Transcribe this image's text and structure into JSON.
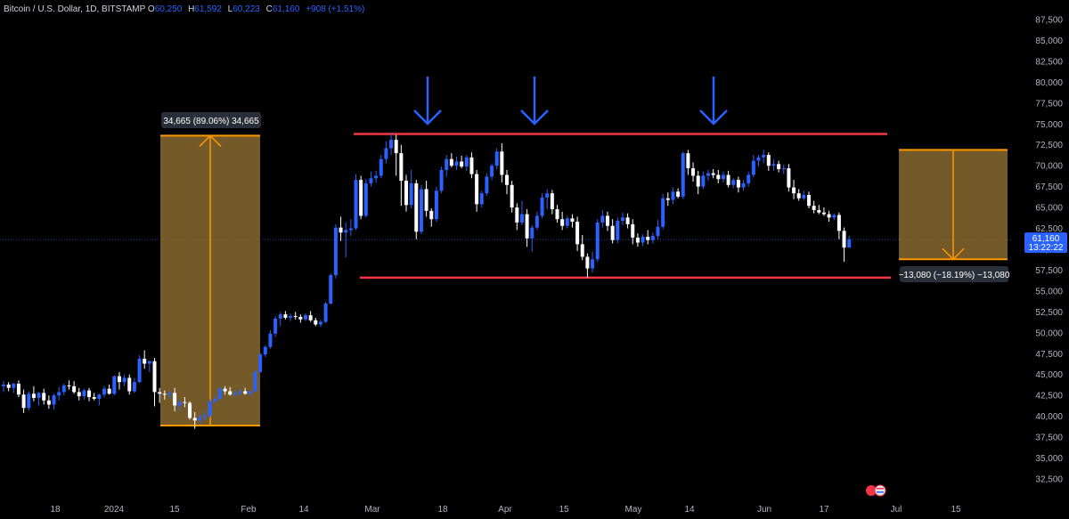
{
  "header": {
    "symbol": "Bitcoin / U.S. Dollar, 1D, BITSTAMP",
    "o_label": "O",
    "o_value": "60,250",
    "h_label": "H",
    "h_value": "61,592",
    "l_label": "L",
    "l_value": "60,223",
    "c_label": "C",
    "c_value": "61,160",
    "change": "+908 (+1.51%)"
  },
  "chart_data": {
    "type": "candlestick",
    "y_ticks": [
      "87,500",
      "85,000",
      "82,500",
      "80,000",
      "77,500",
      "75,000",
      "72,500",
      "70,000",
      "67,500",
      "65,000",
      "62,500",
      "60,000",
      "57,500",
      "55,000",
      "52,500",
      "50,000",
      "47,500",
      "45,000",
      "42,500",
      "40,000",
      "37,500",
      "35,000",
      "32,500"
    ],
    "x_ticks": [
      "18",
      "2024",
      "15",
      "Feb",
      "14",
      "Mar",
      "18",
      "Apr",
      "15",
      "May",
      "14",
      "Jun",
      "17",
      "Jul",
      "15"
    ],
    "current_price": {
      "value": "61,160",
      "countdown": "13:22:22"
    },
    "resistance": 73800,
    "support": 56600,
    "measure_up": {
      "label": "34,665 (89.06%) 34,665",
      "from": 38900,
      "to": 73600
    },
    "measure_down": {
      "label": "−13,080 (−18.19%) −13,080",
      "from": 71900,
      "to": 58800
    },
    "arrow_marks": 3,
    "colors": {
      "up": "#2962ff",
      "down": "#ffffff",
      "level": "#f23645",
      "box": "#8a6a30",
      "box_edge": "#ff9800",
      "arrow": "#2962ff"
    },
    "ohlc": [
      {
        "o": 43600,
        "h": 44200,
        "l": 42900,
        "c": 43800
      },
      {
        "o": 43800,
        "h": 44100,
        "l": 43000,
        "c": 43400
      },
      {
        "o": 43400,
        "h": 44000,
        "l": 42800,
        "c": 43900
      },
      {
        "o": 43900,
        "h": 44300,
        "l": 42300,
        "c": 42600
      },
      {
        "o": 42600,
        "h": 43200,
        "l": 40400,
        "c": 41000
      },
      {
        "o": 41000,
        "h": 43000,
        "l": 40700,
        "c": 42700
      },
      {
        "o": 42700,
        "h": 43600,
        "l": 41800,
        "c": 42200
      },
      {
        "o": 42200,
        "h": 42900,
        "l": 41300,
        "c": 42800
      },
      {
        "o": 42800,
        "h": 43300,
        "l": 41400,
        "c": 41900
      },
      {
        "o": 41900,
        "h": 42500,
        "l": 40900,
        "c": 41400
      },
      {
        "o": 41400,
        "h": 42700,
        "l": 40800,
        "c": 42500
      },
      {
        "o": 42500,
        "h": 43500,
        "l": 41900,
        "c": 42900
      },
      {
        "o": 42900,
        "h": 43900,
        "l": 42500,
        "c": 43700
      },
      {
        "o": 43700,
        "h": 44300,
        "l": 43200,
        "c": 43600
      },
      {
        "o": 43600,
        "h": 44200,
        "l": 42700,
        "c": 42900
      },
      {
        "o": 42900,
        "h": 43400,
        "l": 41900,
        "c": 42400
      },
      {
        "o": 42400,
        "h": 43300,
        "l": 42000,
        "c": 43100
      },
      {
        "o": 43100,
        "h": 43400,
        "l": 41800,
        "c": 42300
      },
      {
        "o": 42300,
        "h": 42800,
        "l": 41900,
        "c": 42100
      },
      {
        "o": 42100,
        "h": 42700,
        "l": 41300,
        "c": 42600
      },
      {
        "o": 42600,
        "h": 43600,
        "l": 42300,
        "c": 43300
      },
      {
        "o": 43300,
        "h": 43800,
        "l": 42600,
        "c": 42700
      },
      {
        "o": 42700,
        "h": 44900,
        "l": 42500,
        "c": 44800
      },
      {
        "o": 44800,
        "h": 45300,
        "l": 43200,
        "c": 44100
      },
      {
        "o": 44100,
        "h": 45000,
        "l": 43600,
        "c": 44600
      },
      {
        "o": 44600,
        "h": 45000,
        "l": 42600,
        "c": 43000
      },
      {
        "o": 43000,
        "h": 44600,
        "l": 42800,
        "c": 44100
      },
      {
        "o": 44100,
        "h": 47300,
        "l": 44000,
        "c": 46900
      },
      {
        "o": 46900,
        "h": 47900,
        "l": 45700,
        "c": 46300
      },
      {
        "o": 46300,
        "h": 46700,
        "l": 45300,
        "c": 46600
      },
      {
        "o": 46600,
        "h": 47000,
        "l": 41200,
        "c": 42900
      },
      {
        "o": 42900,
        "h": 43400,
        "l": 41600,
        "c": 42700
      },
      {
        "o": 42700,
        "h": 43100,
        "l": 42000,
        "c": 42600
      },
      {
        "o": 42600,
        "h": 43000,
        "l": 42100,
        "c": 42800
      },
      {
        "o": 42800,
        "h": 43400,
        "l": 40600,
        "c": 41300
      },
      {
        "o": 41300,
        "h": 41900,
        "l": 40600,
        "c": 41700
      },
      {
        "o": 41700,
        "h": 42300,
        "l": 41100,
        "c": 41600
      },
      {
        "o": 41600,
        "h": 41800,
        "l": 39600,
        "c": 39800
      },
      {
        "o": 39800,
        "h": 40500,
        "l": 38500,
        "c": 39500
      },
      {
        "o": 39500,
        "h": 40300,
        "l": 39100,
        "c": 39900
      },
      {
        "o": 39900,
        "h": 40600,
        "l": 39500,
        "c": 40100
      },
      {
        "o": 40100,
        "h": 42000,
        "l": 39800,
        "c": 41800
      },
      {
        "o": 41800,
        "h": 42500,
        "l": 41500,
        "c": 42100
      },
      {
        "o": 42100,
        "h": 43500,
        "l": 41800,
        "c": 43300
      },
      {
        "o": 43300,
        "h": 43600,
        "l": 42600,
        "c": 43000
      },
      {
        "o": 43000,
        "h": 43500,
        "l": 42500,
        "c": 42600
      },
      {
        "o": 42600,
        "h": 43100,
        "l": 42300,
        "c": 42800
      },
      {
        "o": 42800,
        "h": 43300,
        "l": 42500,
        "c": 43000
      },
      {
        "o": 43000,
        "h": 43400,
        "l": 42600,
        "c": 42700
      },
      {
        "o": 42700,
        "h": 43100,
        "l": 42400,
        "c": 43000
      },
      {
        "o": 43000,
        "h": 45500,
        "l": 42900,
        "c": 45300
      },
      {
        "o": 45300,
        "h": 47600,
        "l": 45200,
        "c": 47400
      },
      {
        "o": 47400,
        "h": 48500,
        "l": 47100,
        "c": 48300
      },
      {
        "o": 48300,
        "h": 50300,
        "l": 48100,
        "c": 49900
      },
      {
        "o": 49900,
        "h": 52000,
        "l": 49500,
        "c": 51700
      },
      {
        "o": 51700,
        "h": 52500,
        "l": 50800,
        "c": 52200
      },
      {
        "o": 52200,
        "h": 52600,
        "l": 51600,
        "c": 51800
      },
      {
        "o": 51800,
        "h": 52300,
        "l": 51400,
        "c": 52000
      },
      {
        "o": 52000,
        "h": 52500,
        "l": 51600,
        "c": 51900
      },
      {
        "o": 51900,
        "h": 52200,
        "l": 51200,
        "c": 51600
      },
      {
        "o": 51600,
        "h": 52300,
        "l": 51400,
        "c": 52100
      },
      {
        "o": 52100,
        "h": 52600,
        "l": 51300,
        "c": 51500
      },
      {
        "o": 51500,
        "h": 51800,
        "l": 50800,
        "c": 51000
      },
      {
        "o": 51000,
        "h": 51600,
        "l": 50700,
        "c": 51300
      },
      {
        "o": 51300,
        "h": 53700,
        "l": 51200,
        "c": 53500
      },
      {
        "o": 53500,
        "h": 57100,
        "l": 53400,
        "c": 56900
      },
      {
        "o": 56900,
        "h": 63000,
        "l": 56500,
        "c": 62600
      },
      {
        "o": 62600,
        "h": 63900,
        "l": 61000,
        "c": 62000
      },
      {
        "o": 62000,
        "h": 63200,
        "l": 59000,
        "c": 62300
      },
      {
        "o": 62300,
        "h": 63600,
        "l": 61600,
        "c": 62500
      },
      {
        "o": 62500,
        "h": 69000,
        "l": 62300,
        "c": 68300
      },
      {
        "o": 68300,
        "h": 68800,
        "l": 63600,
        "c": 64000
      },
      {
        "o": 64000,
        "h": 68400,
        "l": 63800,
        "c": 67900
      },
      {
        "o": 67900,
        "h": 69300,
        "l": 67500,
        "c": 68500
      },
      {
        "o": 68500,
        "h": 69400,
        "l": 68000,
        "c": 68800
      },
      {
        "o": 68800,
        "h": 71300,
        "l": 68500,
        "c": 70800
      },
      {
        "o": 70800,
        "h": 72900,
        "l": 70300,
        "c": 72100
      },
      {
        "o": 72100,
        "h": 73800,
        "l": 71300,
        "c": 73100
      },
      {
        "o": 73100,
        "h": 73700,
        "l": 68800,
        "c": 71500
      },
      {
        "o": 71500,
        "h": 72500,
        "l": 65200,
        "c": 68200
      },
      {
        "o": 68200,
        "h": 68900,
        "l": 64500,
        "c": 65300
      },
      {
        "o": 65300,
        "h": 69500,
        "l": 64900,
        "c": 67900
      },
      {
        "o": 67900,
        "h": 68300,
        "l": 61200,
        "c": 62100
      },
      {
        "o": 62100,
        "h": 67700,
        "l": 61800,
        "c": 67200
      },
      {
        "o": 67200,
        "h": 68200,
        "l": 63900,
        "c": 64600
      },
      {
        "o": 64600,
        "h": 64900,
        "l": 62700,
        "c": 63600
      },
      {
        "o": 63600,
        "h": 67500,
        "l": 63300,
        "c": 67000
      },
      {
        "o": 67000,
        "h": 69900,
        "l": 66700,
        "c": 69500
      },
      {
        "o": 69500,
        "h": 71300,
        "l": 68700,
        "c": 70800
      },
      {
        "o": 70800,
        "h": 71500,
        "l": 69800,
        "c": 70000
      },
      {
        "o": 70000,
        "h": 71100,
        "l": 69500,
        "c": 70500
      },
      {
        "o": 70500,
        "h": 71200,
        "l": 69700,
        "c": 69900
      },
      {
        "o": 69900,
        "h": 71300,
        "l": 69400,
        "c": 71000
      },
      {
        "o": 71000,
        "h": 71600,
        "l": 68500,
        "c": 69000
      },
      {
        "o": 69000,
        "h": 69500,
        "l": 64500,
        "c": 65400
      },
      {
        "o": 65400,
        "h": 67000,
        "l": 65000,
        "c": 66700
      },
      {
        "o": 66700,
        "h": 69100,
        "l": 66400,
        "c": 68700
      },
      {
        "o": 68700,
        "h": 70300,
        "l": 68300,
        "c": 70000
      },
      {
        "o": 70000,
        "h": 72100,
        "l": 69600,
        "c": 71700
      },
      {
        "o": 71700,
        "h": 72700,
        "l": 68000,
        "c": 68900
      },
      {
        "o": 68900,
        "h": 69500,
        "l": 66600,
        "c": 67700
      },
      {
        "o": 67700,
        "h": 68200,
        "l": 64400,
        "c": 65000
      },
      {
        "o": 65000,
        "h": 65500,
        "l": 62300,
        "c": 63200
      },
      {
        "o": 63200,
        "h": 65800,
        "l": 62900,
        "c": 64200
      },
      {
        "o": 64200,
        "h": 64800,
        "l": 60300,
        "c": 61300
      },
      {
        "o": 61300,
        "h": 62900,
        "l": 59700,
        "c": 62600
      },
      {
        "o": 62600,
        "h": 64500,
        "l": 62300,
        "c": 64000
      },
      {
        "o": 64000,
        "h": 66700,
        "l": 63700,
        "c": 66200
      },
      {
        "o": 66200,
        "h": 67200,
        "l": 64800,
        "c": 66700
      },
      {
        "o": 66700,
        "h": 67100,
        "l": 64200,
        "c": 64800
      },
      {
        "o": 64800,
        "h": 65300,
        "l": 63200,
        "c": 63600
      },
      {
        "o": 63600,
        "h": 64500,
        "l": 62300,
        "c": 62800
      },
      {
        "o": 62800,
        "h": 64000,
        "l": 62500,
        "c": 63700
      },
      {
        "o": 63700,
        "h": 64200,
        "l": 62600,
        "c": 63300
      },
      {
        "o": 63300,
        "h": 63900,
        "l": 59800,
        "c": 60600
      },
      {
        "o": 60600,
        "h": 61700,
        "l": 58700,
        "c": 59100
      },
      {
        "o": 59100,
        "h": 59500,
        "l": 56600,
        "c": 57700
      },
      {
        "o": 57700,
        "h": 59700,
        "l": 57200,
        "c": 58800
      },
      {
        "o": 58800,
        "h": 63600,
        "l": 58500,
        "c": 63200
      },
      {
        "o": 63200,
        "h": 64700,
        "l": 62600,
        "c": 64000
      },
      {
        "o": 64000,
        "h": 64500,
        "l": 62200,
        "c": 62800
      },
      {
        "o": 62800,
        "h": 63600,
        "l": 60700,
        "c": 61100
      },
      {
        "o": 61100,
        "h": 63800,
        "l": 60700,
        "c": 63400
      },
      {
        "o": 63400,
        "h": 64400,
        "l": 62900,
        "c": 63800
      },
      {
        "o": 63800,
        "h": 64300,
        "l": 62500,
        "c": 63000
      },
      {
        "o": 63000,
        "h": 63600,
        "l": 60600,
        "c": 61400
      },
      {
        "o": 61400,
        "h": 61900,
        "l": 60300,
        "c": 60800
      },
      {
        "o": 60800,
        "h": 61800,
        "l": 60400,
        "c": 61500
      },
      {
        "o": 61500,
        "h": 62300,
        "l": 60600,
        "c": 61100
      },
      {
        "o": 61100,
        "h": 62000,
        "l": 60700,
        "c": 61600
      },
      {
        "o": 61600,
        "h": 63500,
        "l": 61200,
        "c": 62700
      },
      {
        "o": 62700,
        "h": 66600,
        "l": 62400,
        "c": 66100
      },
      {
        "o": 66100,
        "h": 66800,
        "l": 65200,
        "c": 65900
      },
      {
        "o": 65900,
        "h": 67400,
        "l": 65400,
        "c": 66900
      },
      {
        "o": 66900,
        "h": 67300,
        "l": 66100,
        "c": 66300
      },
      {
        "o": 66300,
        "h": 71700,
        "l": 66000,
        "c": 71500
      },
      {
        "o": 71500,
        "h": 71900,
        "l": 68900,
        "c": 69700
      },
      {
        "o": 69700,
        "h": 70400,
        "l": 68100,
        "c": 68800
      },
      {
        "o": 68800,
        "h": 69400,
        "l": 66600,
        "c": 67500
      },
      {
        "o": 67500,
        "h": 69300,
        "l": 67200,
        "c": 68800
      },
      {
        "o": 68800,
        "h": 69500,
        "l": 68200,
        "c": 69100
      },
      {
        "o": 69100,
        "h": 69600,
        "l": 68500,
        "c": 68900
      },
      {
        "o": 68900,
        "h": 69500,
        "l": 67900,
        "c": 68400
      },
      {
        "o": 68400,
        "h": 69300,
        "l": 68000,
        "c": 68900
      },
      {
        "o": 68900,
        "h": 69400,
        "l": 67400,
        "c": 67700
      },
      {
        "o": 67700,
        "h": 68500,
        "l": 67300,
        "c": 68300
      },
      {
        "o": 68300,
        "h": 68700,
        "l": 66800,
        "c": 67400
      },
      {
        "o": 67400,
        "h": 68300,
        "l": 67000,
        "c": 67900
      },
      {
        "o": 67900,
        "h": 69300,
        "l": 67500,
        "c": 68900
      },
      {
        "o": 68900,
        "h": 71300,
        "l": 68600,
        "c": 70600
      },
      {
        "o": 70600,
        "h": 71300,
        "l": 69900,
        "c": 71000
      },
      {
        "o": 71000,
        "h": 71900,
        "l": 70300,
        "c": 71300
      },
      {
        "o": 71300,
        "h": 71600,
        "l": 69400,
        "c": 70000
      },
      {
        "o": 70000,
        "h": 70800,
        "l": 69400,
        "c": 70200
      },
      {
        "o": 70200,
        "h": 70600,
        "l": 69200,
        "c": 69600
      },
      {
        "o": 69600,
        "h": 70100,
        "l": 69000,
        "c": 69700
      },
      {
        "o": 69700,
        "h": 70200,
        "l": 66900,
        "c": 67400
      },
      {
        "o": 67400,
        "h": 68300,
        "l": 66000,
        "c": 66700
      },
      {
        "o": 66700,
        "h": 67200,
        "l": 65800,
        "c": 66100
      },
      {
        "o": 66100,
        "h": 67000,
        "l": 65900,
        "c": 66500
      },
      {
        "o": 66500,
        "h": 66900,
        "l": 64900,
        "c": 65200
      },
      {
        "o": 65200,
        "h": 65800,
        "l": 64300,
        "c": 64700
      },
      {
        "o": 64700,
        "h": 65300,
        "l": 64200,
        "c": 64400
      },
      {
        "o": 64400,
        "h": 65000,
        "l": 64000,
        "c": 64200
      },
      {
        "o": 64200,
        "h": 64600,
        "l": 63300,
        "c": 63800
      },
      {
        "o": 63800,
        "h": 64300,
        "l": 63500,
        "c": 64100
      },
      {
        "o": 64100,
        "h": 64400,
        "l": 61200,
        "c": 62200
      },
      {
        "o": 62200,
        "h": 62600,
        "l": 58500,
        "c": 60200
      },
      {
        "o": 60200,
        "h": 61600,
        "l": 60200,
        "c": 61200
      }
    ]
  }
}
